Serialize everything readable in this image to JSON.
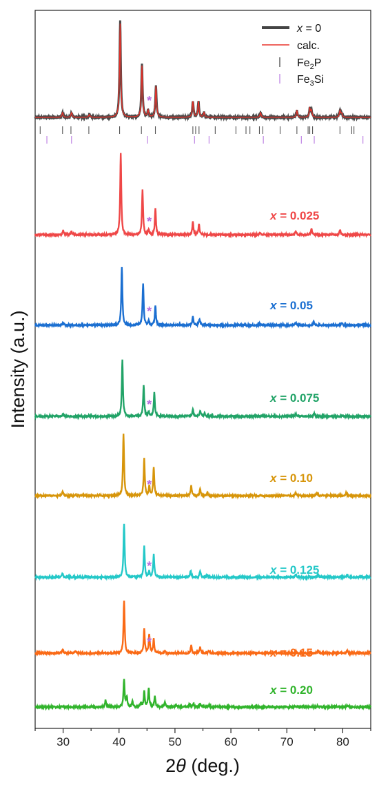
{
  "chart_data": {
    "type": "line",
    "xlabel_prefix": "2",
    "xlabel_var": "θ",
    "xlabel_suffix": " (deg.)",
    "ylabel": "Intensity (a.u.)",
    "xlim": [
      25,
      85
    ],
    "xticks": [
      30,
      40,
      50,
      60,
      70,
      80
    ],
    "grid": false,
    "legend": {
      "position": "top-right",
      "entries": [
        {
          "var": "x",
          "text": " = 0",
          "kind": "thick-line",
          "color": "#444444"
        },
        {
          "text": "calc.",
          "kind": "line",
          "color": "#e8322a"
        },
        {
          "text": "Fe",
          "sub": "2",
          "tail": "P",
          "kind": "tick",
          "color": "#555555"
        },
        {
          "text": "Fe",
          "sub": "3",
          "tail": "Si",
          "kind": "tick",
          "color": "#c38de6"
        }
      ]
    },
    "impurity_marker": {
      "symbol": "*",
      "color": "#b96ee0",
      "x": 45.4
    },
    "fe2p_reflections": [
      25.9,
      29.9,
      31.4,
      34.6,
      40.1,
      44.0,
      46.5,
      53.2,
      53.7,
      54.3,
      57.2,
      60.9,
      62.7,
      63.4,
      65.1,
      65.7,
      68.8,
      71.8,
      73.8,
      74.1,
      74.6,
      79.5,
      81.6,
      82.0
    ],
    "fe3si_reflections": [
      27.1,
      31.5,
      45.1,
      53.5,
      56.1,
      65.8,
      72.6,
      74.9,
      83.6
    ],
    "series": [
      {
        "name": "x = 0",
        "var": "x",
        "label": " = 0",
        "color": "#444444",
        "peaks": [
          [
            29.9,
            0.05
          ],
          [
            31.5,
            0.05
          ],
          [
            34.7,
            0.03
          ],
          [
            40.2,
            1.0
          ],
          [
            44.1,
            0.55
          ],
          [
            45.2,
            0.07
          ],
          [
            46.6,
            0.33
          ],
          [
            53.2,
            0.17
          ],
          [
            54.2,
            0.17
          ],
          [
            55.2,
            0.05
          ],
          [
            65.3,
            0.05
          ],
          [
            71.8,
            0.07
          ],
          [
            74.1,
            0.09
          ],
          [
            74.4,
            0.07
          ],
          [
            79.5,
            0.07
          ],
          [
            79.8,
            0.04
          ]
        ]
      },
      {
        "name": "x = 0.025",
        "var": "x",
        "label": " = 0.025",
        "color": "#ef4747",
        "peaks": [
          [
            30.0,
            0.05
          ],
          [
            31.5,
            0.04
          ],
          [
            40.3,
            1.0
          ],
          [
            44.2,
            0.55
          ],
          [
            45.3,
            0.05
          ],
          [
            46.5,
            0.32
          ],
          [
            53.2,
            0.17
          ],
          [
            54.3,
            0.13
          ],
          [
            65.2,
            0.03
          ],
          [
            71.6,
            0.05
          ],
          [
            74.4,
            0.07
          ],
          [
            79.5,
            0.06
          ]
        ]
      },
      {
        "name": "x = 0.05",
        "var": "x",
        "label": " = 0.05",
        "color": "#1b6fd1",
        "peaks": [
          [
            30.0,
            0.05
          ],
          [
            40.5,
            1.0
          ],
          [
            44.3,
            0.7
          ],
          [
            45.3,
            0.07
          ],
          [
            46.5,
            0.33
          ],
          [
            53.2,
            0.16
          ],
          [
            54.4,
            0.11
          ],
          [
            65.1,
            0.03
          ],
          [
            71.6,
            0.05
          ],
          [
            74.8,
            0.06
          ],
          [
            79.8,
            0.04
          ]
        ]
      },
      {
        "name": "x = 0.075",
        "var": "x",
        "label": " = 0.075",
        "color": "#21a367",
        "peaks": [
          [
            30.0,
            0.04
          ],
          [
            40.6,
            1.0
          ],
          [
            44.4,
            0.55
          ],
          [
            45.3,
            0.07
          ],
          [
            46.3,
            0.42
          ],
          [
            53.2,
            0.12
          ],
          [
            54.5,
            0.1
          ],
          [
            55.3,
            0.05
          ],
          [
            71.6,
            0.04
          ],
          [
            74.9,
            0.05
          ],
          [
            80.0,
            0.03
          ]
        ]
      },
      {
        "name": "x = 0.10",
        "var": "x",
        "label": " = 0.10",
        "color": "#d7950a",
        "peaks": [
          [
            29.9,
            0.08
          ],
          [
            32.2,
            0.03
          ],
          [
            40.8,
            1.0
          ],
          [
            44.5,
            0.6
          ],
          [
            45.4,
            0.15
          ],
          [
            46.2,
            0.47
          ],
          [
            52.9,
            0.16
          ],
          [
            54.5,
            0.11
          ],
          [
            55.8,
            0.05
          ],
          [
            71.6,
            0.05
          ],
          [
            75.4,
            0.05
          ],
          [
            80.6,
            0.05
          ]
        ]
      },
      {
        "name": "x = 0.125",
        "var": "x",
        "label": " = 0.125",
        "color": "#24c8c8",
        "peaks": [
          [
            29.9,
            0.07
          ],
          [
            40.9,
            1.0
          ],
          [
            44.5,
            0.57
          ],
          [
            45.4,
            0.1
          ],
          [
            46.2,
            0.43
          ],
          [
            52.8,
            0.12
          ],
          [
            54.5,
            0.12
          ],
          [
            55.8,
            0.04
          ],
          [
            71.6,
            0.06
          ],
          [
            75.6,
            0.06
          ],
          [
            80.8,
            0.05
          ]
        ]
      },
      {
        "name": "x = 0.15",
        "var": "x",
        "label": " = 0.15",
        "color": "#fa6a16",
        "peaks": [
          [
            29.9,
            0.07
          ],
          [
            32.2,
            0.04
          ],
          [
            40.9,
            1.0
          ],
          [
            44.5,
            0.46
          ],
          [
            45.4,
            0.36
          ],
          [
            46.2,
            0.26
          ],
          [
            48.2,
            0.04
          ],
          [
            52.9,
            0.15
          ],
          [
            54.5,
            0.11
          ],
          [
            56.1,
            0.05
          ],
          [
            71.6,
            0.04
          ],
          [
            75.6,
            0.05
          ],
          [
            80.8,
            0.05
          ]
        ]
      },
      {
        "name": "x = 0.20",
        "var": "x",
        "label": " = 0.20",
        "color": "#31b42c",
        "peaks": [
          [
            29.9,
            0.04
          ],
          [
            37.6,
            0.25
          ],
          [
            40.9,
            1.0
          ],
          [
            41.4,
            0.35
          ],
          [
            42.4,
            0.2
          ],
          [
            43.9,
            0.15
          ],
          [
            44.5,
            0.55
          ],
          [
            45.3,
            0.7
          ],
          [
            46.4,
            0.4
          ],
          [
            48.2,
            0.2
          ],
          [
            50.2,
            0.08
          ],
          [
            52.6,
            0.1
          ],
          [
            53.3,
            0.13
          ],
          [
            54.5,
            0.11
          ],
          [
            56.1,
            0.06
          ],
          [
            57.5,
            0.05
          ],
          [
            71.6,
            0.04
          ],
          [
            75.6,
            0.04
          ],
          [
            80.8,
            0.05
          ]
        ]
      }
    ]
  }
}
